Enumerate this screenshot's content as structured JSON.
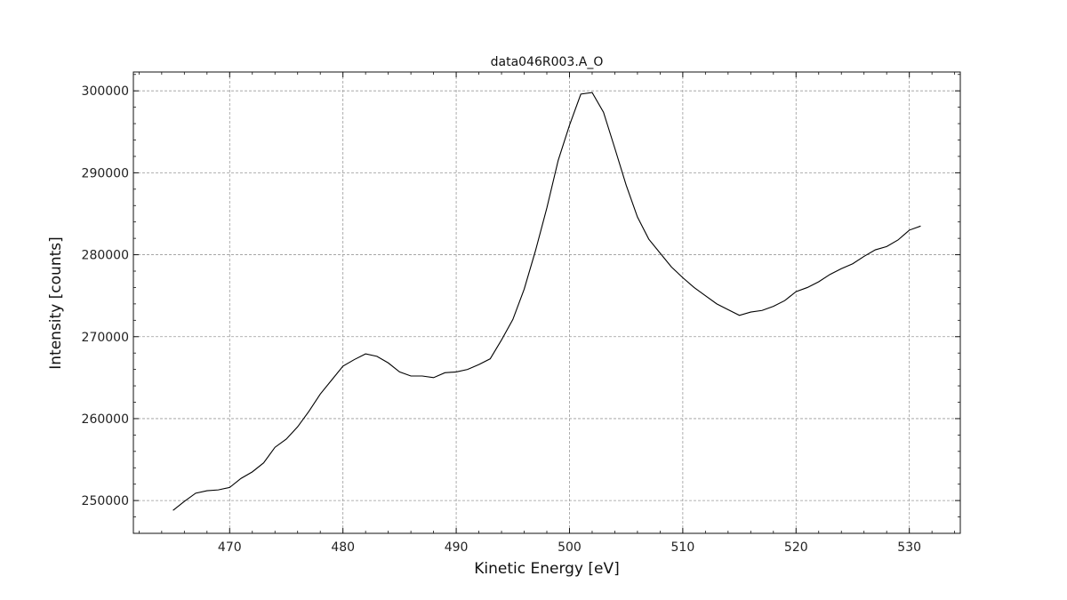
{
  "chart_data": {
    "type": "line",
    "title": "data046R003.A_O",
    "xlabel": "Kinetic Energy [eV]",
    "ylabel": "Intensity [counts]",
    "xlim": [
      461.5,
      534.5
    ],
    "ylim": [
      246000,
      302300
    ],
    "x_ticks": [
      470,
      480,
      490,
      500,
      510,
      520,
      530
    ],
    "y_ticks": [
      250000,
      260000,
      270000,
      280000,
      290000,
      300000
    ],
    "grid": true,
    "line_color": "#000000",
    "series": [
      {
        "x": [
          465,
          466,
          467,
          468,
          469,
          470,
          471,
          472,
          473,
          474,
          475,
          476,
          477,
          478,
          479,
          480,
          481,
          482,
          483,
          484,
          485,
          486,
          487,
          488,
          489,
          490,
          491,
          492,
          493,
          494,
          495,
          496,
          497,
          498,
          499,
          500,
          501,
          502,
          503,
          504,
          505,
          506,
          507,
          508,
          509,
          510,
          511,
          512,
          513,
          514,
          515,
          516,
          517,
          518,
          519,
          520,
          521,
          522,
          523,
          524,
          525,
          526,
          527,
          528,
          529,
          530,
          531
        ],
        "y": [
          248800,
          249900,
          250900,
          251200,
          251300,
          251600,
          252700,
          253500,
          254600,
          256500,
          257500,
          259000,
          260900,
          263000,
          264700,
          266400,
          267200,
          267900,
          267600,
          266800,
          265700,
          265200,
          265200,
          265000,
          265600,
          265700,
          266000,
          266600,
          267300,
          269600,
          272100,
          275800,
          280500,
          285700,
          291500,
          295800,
          299600,
          299800,
          297400,
          293000,
          288500,
          284600,
          281900,
          280200,
          278500,
          277200,
          276000,
          275000,
          274000,
          273300,
          272600,
          273000,
          273200,
          273700,
          274400,
          275500,
          276000,
          276700,
          277600,
          278300,
          278900,
          279800,
          280600,
          281000,
          281800,
          283000,
          283500
        ]
      }
    ]
  }
}
